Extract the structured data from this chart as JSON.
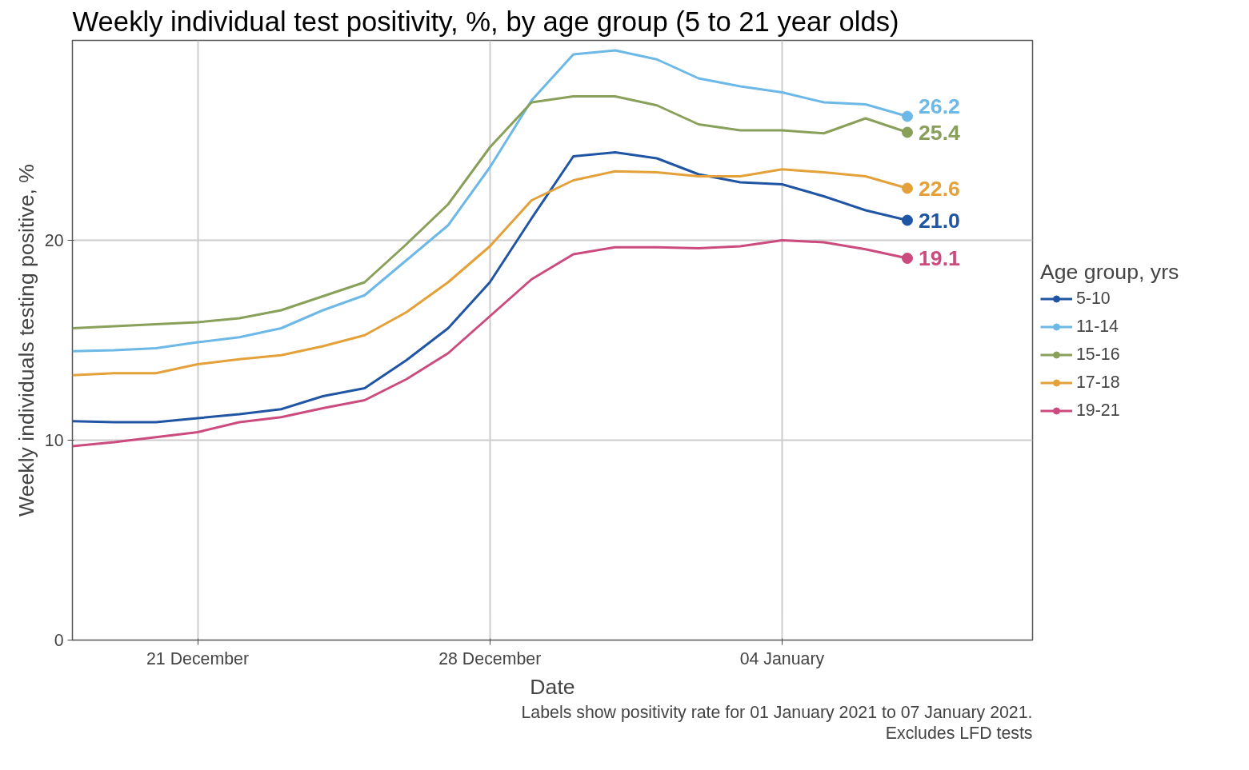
{
  "chart_data": {
    "type": "line",
    "title": "Weekly individual test positivity, %, by age group (5 to 21 year olds)",
    "xlabel": "Date",
    "ylabel": "Weekly individuals testing positive, %",
    "legend_title": "Age group, yrs",
    "annotations": [
      "Labels show positivity rate for 01 January 2021 to 07 January 2021.",
      "Excludes LFD tests"
    ],
    "x": [
      "2020-12-18",
      "2020-12-19",
      "2020-12-20",
      "2020-12-21",
      "2020-12-22",
      "2020-12-23",
      "2020-12-24",
      "2020-12-25",
      "2020-12-26",
      "2020-12-27",
      "2020-12-28",
      "2020-12-29",
      "2020-12-30",
      "2020-12-31",
      "2021-01-01",
      "2021-01-02",
      "2021-01-03",
      "2021-01-04",
      "2021-01-05",
      "2021-01-06",
      "2021-01-07"
    ],
    "series": [
      {
        "name": "5-10",
        "color": "#2055a4",
        "values": [
          10.95,
          10.9,
          10.9,
          11.1,
          11.3,
          11.55,
          12.2,
          12.6,
          14.0,
          15.6,
          17.9,
          21.1,
          24.2,
          24.4,
          24.1,
          23.3,
          22.9,
          22.8,
          22.2,
          21.5,
          21.0
        ],
        "value_labels": [
          null,
          null,
          null,
          null,
          null,
          null,
          null,
          null,
          null,
          null,
          null,
          null,
          null,
          null,
          null,
          null,
          null,
          null,
          null,
          null,
          "21.0"
        ]
      },
      {
        "name": "11-14",
        "color": "#6cb8e6",
        "values": [
          14.45,
          14.5,
          14.6,
          14.9,
          15.15,
          15.6,
          16.5,
          17.25,
          19.0,
          20.75,
          23.65,
          27.0,
          29.3,
          29.5,
          29.05,
          28.1,
          27.7,
          27.4,
          26.9,
          26.8,
          26.2
        ],
        "value_labels": [
          null,
          null,
          null,
          null,
          null,
          null,
          null,
          null,
          null,
          null,
          null,
          null,
          null,
          null,
          null,
          null,
          null,
          null,
          null,
          null,
          "26.2"
        ]
      },
      {
        "name": "15-16",
        "color": "#88a05a",
        "values": [
          15.6,
          15.7,
          15.8,
          15.9,
          16.1,
          16.5,
          17.2,
          17.9,
          19.8,
          21.8,
          24.65,
          26.9,
          27.2,
          27.2,
          26.75,
          25.8,
          25.5,
          25.5,
          25.35,
          26.1,
          25.4
        ],
        "value_labels": [
          null,
          null,
          null,
          null,
          null,
          null,
          null,
          null,
          null,
          null,
          null,
          null,
          null,
          null,
          null,
          null,
          null,
          null,
          null,
          null,
          "25.4"
        ]
      },
      {
        "name": "17-18",
        "color": "#e4a13a",
        "values": [
          13.25,
          13.35,
          13.35,
          13.8,
          14.05,
          14.25,
          14.7,
          15.25,
          16.4,
          17.9,
          19.7,
          22.0,
          23.0,
          23.45,
          23.4,
          23.2,
          23.2,
          23.55,
          23.4,
          23.2,
          22.6
        ],
        "value_labels": [
          null,
          null,
          null,
          null,
          null,
          null,
          null,
          null,
          null,
          null,
          null,
          null,
          null,
          null,
          null,
          null,
          null,
          null,
          null,
          null,
          "22.6"
        ]
      },
      {
        "name": "19-21",
        "color": "#cc4b7e",
        "values": [
          9.7,
          9.9,
          10.15,
          10.4,
          10.9,
          11.15,
          11.6,
          12.0,
          13.05,
          14.35,
          16.2,
          18.05,
          19.3,
          19.65,
          19.65,
          19.6,
          19.7,
          20.0,
          19.9,
          19.55,
          19.1
        ],
        "value_labels": [
          null,
          null,
          null,
          null,
          null,
          null,
          null,
          null,
          null,
          null,
          null,
          null,
          null,
          null,
          null,
          null,
          null,
          null,
          null,
          null,
          "19.1"
        ]
      }
    ],
    "xlim": [
      "2020-12-18",
      "2021-01-10"
    ],
    "xticks": [
      {
        "value": "2020-12-21",
        "label": "21 December"
      },
      {
        "value": "2020-12-28",
        "label": "28 December"
      },
      {
        "value": "2021-01-04",
        "label": "04 January"
      }
    ],
    "ylim": [
      0,
      30
    ],
    "yticks": [
      0,
      10,
      20
    ],
    "grid": true,
    "legend": "right",
    "line_style": "solid"
  }
}
